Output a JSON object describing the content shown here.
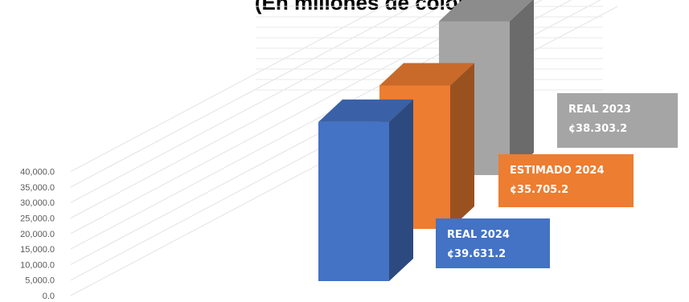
{
  "chart_data": {
    "type": "bar",
    "title": "(En millones de colones)",
    "categories": [
      "REAL 2024",
      "ESTIMADO 2024",
      "REAL 2023"
    ],
    "values": [
      39631.2,
      35705.2,
      38303.2
    ],
    "value_labels": [
      "¢39.631.2",
      "¢35.705.2",
      "¢38.303.2"
    ],
    "ylim": [
      0,
      40000
    ],
    "y_ticks": [
      "0.0",
      "5,000.0",
      "10,000.0",
      "15,000.0",
      "20,000.0",
      "25,000.0",
      "30,000.0",
      "35,000.0",
      "40,000.0"
    ],
    "grid": true,
    "legend": "none",
    "colors": {
      "REAL 2024": "#4472c4",
      "ESTIMADO 2024": "#ed7d31",
      "REAL 2023": "#a5a5a5"
    }
  }
}
